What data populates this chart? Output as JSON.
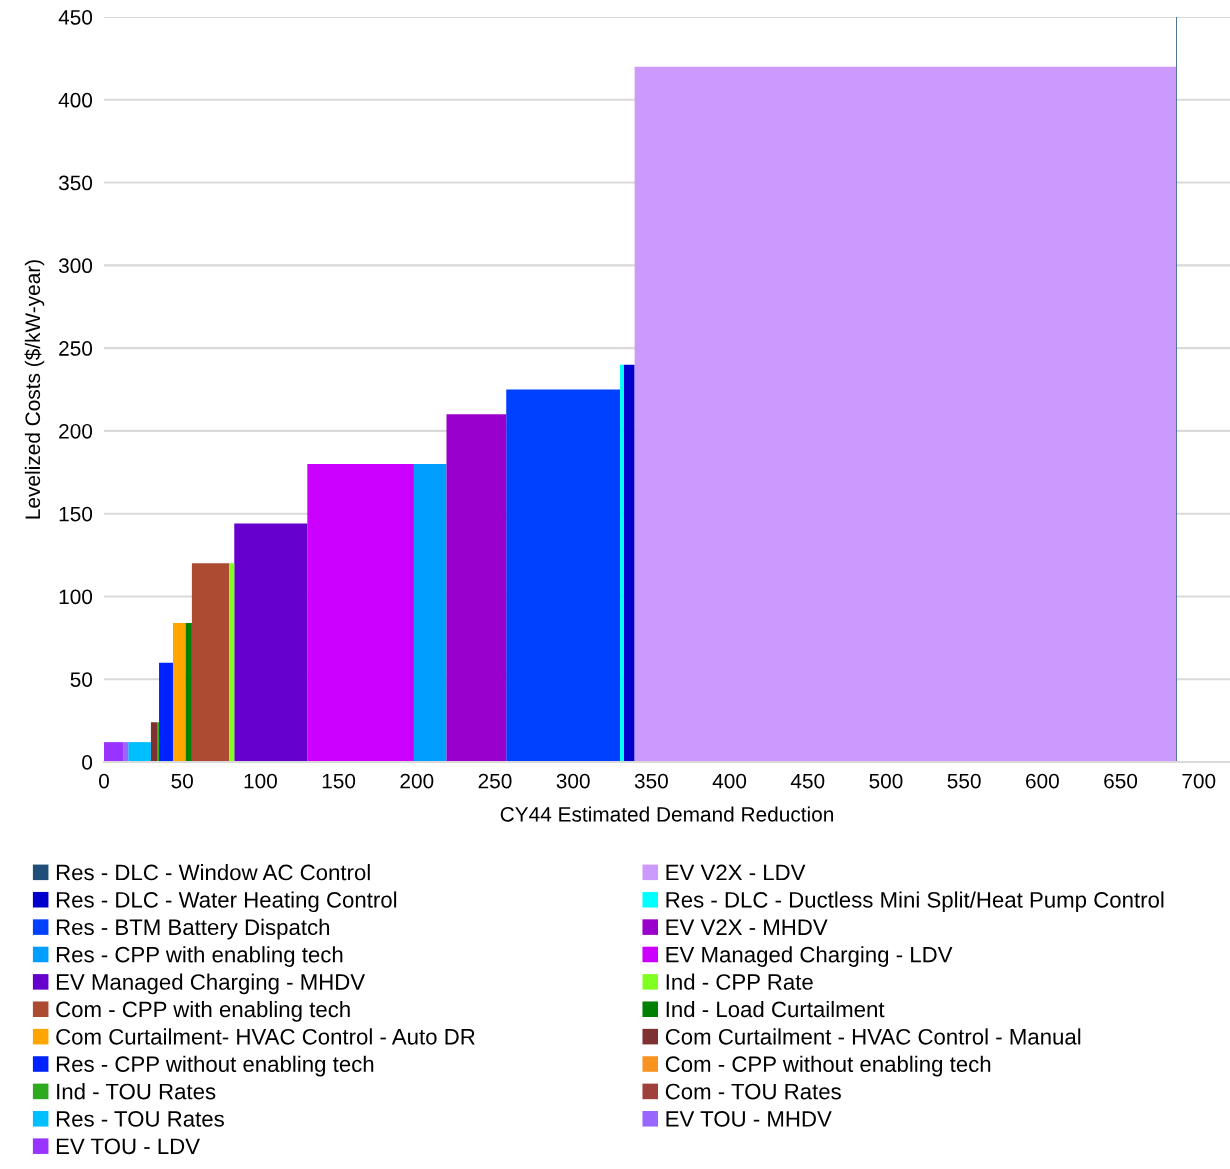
{
  "chart_data": {
    "type": "area",
    "xlabel": "CY44 Estimated Demand Reduction",
    "ylabel": "Levelized Costs ($/kW-year)",
    "xlim": [
      0,
      720
    ],
    "xticks": [
      0,
      50,
      100,
      150,
      200,
      250,
      300,
      350,
      400,
      450,
      500,
      550,
      600,
      650,
      700
    ],
    "ylim": [
      0,
      450
    ],
    "yticks": [
      0,
      50,
      100,
      150,
      200,
      250,
      300,
      350,
      400,
      450
    ],
    "grid": "y",
    "legend": "bottom",
    "series": [
      {
        "name": "Res - DLC - Window AC Control",
        "color": "#1f4e79",
        "x": [
          685.5,
          686
        ],
        "values": [
          450,
          450
        ]
      },
      {
        "name": "Res - DLC - Water Heating Control",
        "color": "#0000cc",
        "x": [
          332.3,
          339.3
        ],
        "values": [
          240,
          240
        ]
      },
      {
        "name": "Res - BTM Battery Dispatch",
        "color": "#0040ff",
        "x": [
          257.2,
          330
        ],
        "values": [
          225,
          225
        ]
      },
      {
        "name": "Res - CPP with enabling tech",
        "color": "#009fff",
        "x": [
          198.2,
          219
        ],
        "values": [
          180,
          180
        ]
      },
      {
        "name": "EV Managed Charging - MHDV",
        "color": "#6600cc",
        "x": [
          83.3,
          130
        ],
        "values": [
          144,
          144
        ]
      },
      {
        "name": "Com - CPP with enabling tech",
        "color": "#ad4a32",
        "x": [
          56.2,
          80
        ],
        "values": [
          120,
          120
        ]
      },
      {
        "name": "Com Curtailment- HVAC Control - Auto DR",
        "color": "#ffa500",
        "x": [
          44.1,
          52.2
        ],
        "values": [
          84,
          84
        ]
      },
      {
        "name": "Res - CPP without enabling tech",
        "color": "#0022ff",
        "x": [
          35.2,
          44.1
        ],
        "values": [
          60,
          60
        ]
      },
      {
        "name": "Ind - TOU Rates",
        "color": "#2eaa1e",
        "x": [
          34,
          35.2
        ],
        "values": [
          24,
          24
        ]
      },
      {
        "name": "Res - TOU Rates",
        "color": "#00bfff",
        "x": [
          15.5,
          30
        ],
        "values": [
          12,
          12
        ]
      },
      {
        "name": "EV TOU - LDV",
        "color": "#9933ff",
        "x": [
          0,
          12.2
        ],
        "values": [
          12,
          12
        ]
      },
      {
        "name": "EV V2X - LDV",
        "color": "#cc99ff",
        "x": [
          339.3,
          685.5
        ],
        "values": [
          420,
          420
        ]
      },
      {
        "name": "Res - DLC - Ductless Mini Split/Heat Pump Control",
        "color": "#00ffff",
        "x": [
          330,
          332.3
        ],
        "values": [
          240,
          240
        ]
      },
      {
        "name": "EV V2X - MHDV",
        "color": "#9900cc",
        "x": [
          219,
          257.2
        ],
        "values": [
          210,
          210
        ]
      },
      {
        "name": "EV Managed Charging - LDV",
        "color": "#cc00ff",
        "x": [
          130,
          198.2
        ],
        "values": [
          180,
          180
        ]
      },
      {
        "name": "Ind - CPP Rate",
        "color": "#80ff20",
        "x": [
          80,
          83.3
        ],
        "values": [
          120,
          120
        ]
      },
      {
        "name": "Ind - Load Curtailment",
        "color": "#008000",
        "x": [
          52.2,
          56.2
        ],
        "values": [
          84,
          84
        ]
      },
      {
        "name": "Com Curtailment - HVAC Control - Manual",
        "color": "#7f3030",
        "x": [
          30,
          34
        ],
        "values": [
          24,
          24
        ]
      },
      {
        "name": "Com - CPP without enabling tech",
        "color": "#f7931e"
      },
      {
        "name": "Com - TOU Rates",
        "color": "#a0403a"
      },
      {
        "name": "EV TOU - MHDV",
        "color": "#9966ff",
        "x": [
          12.2,
          15.5
        ],
        "values": [
          12,
          12
        ]
      }
    ]
  }
}
